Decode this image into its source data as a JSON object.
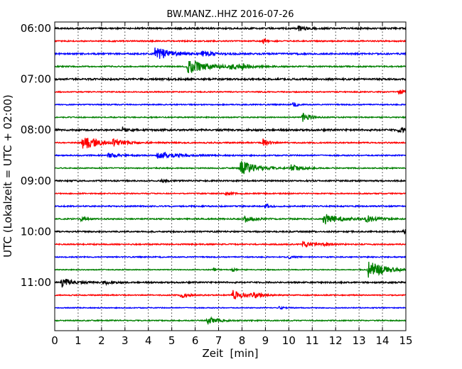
{
  "chart_data": {
    "type": "line",
    "title": "BW.MANZ..HHZ 2016-07-26",
    "xlabel": "Zeit  [min]",
    "ylabel": "UTC (Lokalzeit = UTC + 02:00)",
    "xlim": [
      0,
      15
    ],
    "x_ticks": [
      "0",
      "1",
      "2",
      "3",
      "4",
      "5",
      "6",
      "7",
      "8",
      "9",
      "10",
      "11",
      "12",
      "13",
      "14",
      "15"
    ],
    "y_ticks": [
      "06:00",
      "07:00",
      "08:00",
      "09:00",
      "10:00",
      "11:00"
    ],
    "y_tick_rows": [
      0,
      4,
      8,
      12,
      16,
      20
    ],
    "grid": "vertical dotted",
    "line_colors": [
      "#000000",
      "#ff0000",
      "#0000ff",
      "#008000"
    ],
    "row_minutes": 15,
    "base_noise": [
      0.09,
      0.07,
      0.09,
      0.07,
      0.1,
      0.06,
      0.06,
      0.06,
      0.1,
      0.07,
      0.07,
      0.06,
      0.08,
      0.06,
      0.07,
      0.07,
      0.08,
      0.07,
      0.06,
      0.05,
      0.08,
      0.06,
      0.05,
      0.06
    ],
    "events": [
      [
        [
          10.4,
          0.35,
          0.3
        ]
      ],
      [
        [
          8.9,
          0.3,
          0.15
        ]
      ],
      [
        [
          4.3,
          0.9,
          0.5
        ],
        [
          6.3,
          0.3,
          0.4
        ]
      ],
      [
        [
          5.7,
          0.8,
          0.8
        ],
        [
          7.5,
          0.3,
          0.5
        ],
        [
          8.0,
          0.2,
          0.4
        ]
      ],
      [],
      [
        [
          14.7,
          0.25,
          0.3
        ]
      ],
      [
        [
          10.2,
          0.3,
          0.15
        ]
      ],
      [
        [
          10.6,
          0.5,
          0.3
        ]
      ],
      [
        [
          2.9,
          0.3,
          0.3
        ],
        [
          14.7,
          0.3,
          0.3
        ]
      ],
      [
        [
          1.2,
          0.85,
          0.6
        ],
        [
          2.5,
          0.3,
          0.5
        ],
        [
          8.9,
          0.55,
          0.2
        ]
      ],
      [
        [
          2.3,
          0.25,
          0.4
        ],
        [
          4.4,
          0.45,
          0.7
        ]
      ],
      [
        [
          7.9,
          0.95,
          0.6
        ],
        [
          10.1,
          0.4,
          0.4
        ]
      ],
      [
        [
          4.6,
          0.15,
          0.2
        ]
      ],
      [
        [
          7.3,
          0.15,
          0.3
        ]
      ],
      [
        [
          9.0,
          0.25,
          0.2
        ]
      ],
      [
        [
          1.1,
          0.3,
          0.2
        ],
        [
          8.1,
          0.4,
          0.4
        ],
        [
          11.5,
          0.7,
          0.6
        ],
        [
          13.3,
          0.4,
          0.4
        ]
      ],
      [
        [
          14.9,
          0.3,
          0.2
        ]
      ],
      [
        [
          10.6,
          0.4,
          0.3
        ],
        [
          11.5,
          0.15,
          0.3
        ]
      ],
      [
        [
          10.0,
          0.15,
          0.2
        ]
      ],
      [
        [
          6.8,
          0.2,
          0.1
        ],
        [
          7.6,
          0.25,
          0.1
        ],
        [
          13.4,
          1.0,
          0.7
        ]
      ],
      [
        [
          0.3,
          0.55,
          0.4
        ],
        [
          2.1,
          0.2,
          0.3
        ]
      ],
      [
        [
          5.4,
          0.35,
          0.3
        ],
        [
          7.6,
          0.55,
          0.5
        ],
        [
          8.5,
          0.25,
          0.3
        ]
      ],
      [
        [
          9.6,
          0.15,
          0.2
        ]
      ],
      [
        [
          6.5,
          0.5,
          0.4
        ]
      ]
    ]
  }
}
